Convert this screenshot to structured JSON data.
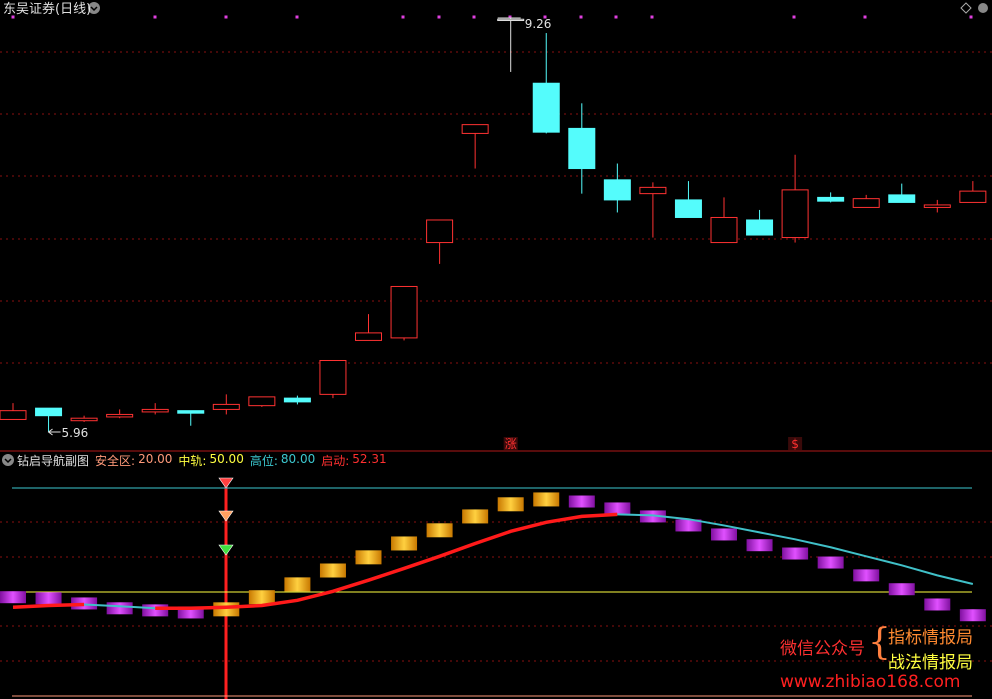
{
  "header": {
    "title": "东吴证券(日线)"
  },
  "chart_data": [
    {
      "type": "candlestick",
      "open": [
        6.06,
        6.15,
        6.05,
        6.08,
        6.12,
        6.13,
        6.14,
        6.17,
        6.23,
        6.26,
        6.69,
        6.71,
        7.47,
        8.34,
        9.24,
        8.74,
        8.38,
        7.97,
        7.86,
        7.81,
        7.47,
        7.65,
        7.51,
        7.83,
        7.75,
        7.85,
        7.75,
        7.79
      ],
      "high": [
        6.19,
        6.15,
        6.09,
        6.14,
        6.19,
        6.13,
        6.26,
        6.24,
        6.25,
        6.53,
        6.9,
        7.12,
        7.65,
        8.41,
        9.26,
        9.14,
        8.58,
        8.1,
        7.95,
        7.96,
        7.83,
        7.73,
        8.17,
        7.87,
        7.85,
        7.94,
        7.81,
        7.96
      ],
      "low": [
        6.06,
        5.96,
        6.04,
        6.07,
        6.1,
        6.01,
        6.1,
        6.16,
        6.18,
        6.23,
        6.69,
        6.69,
        7.3,
        8.06,
        8.83,
        8.34,
        7.86,
        7.71,
        7.51,
        7.67,
        7.47,
        7.53,
        7.47,
        7.79,
        7.75,
        7.79,
        7.71,
        7.79
      ],
      "close": [
        6.13,
        6.09,
        6.07,
        6.1,
        6.14,
        6.11,
        6.18,
        6.24,
        6.2,
        6.53,
        6.75,
        7.12,
        7.65,
        8.41,
        9.25,
        8.35,
        8.06,
        7.81,
        7.91,
        7.67,
        7.67,
        7.53,
        7.89,
        7.8,
        7.82,
        7.79,
        7.77,
        7.88
      ],
      "signals": [
        null,
        null,
        null,
        null,
        null,
        null,
        null,
        null,
        null,
        null,
        null,
        null,
        null,
        null,
        "涨",
        null,
        null,
        null,
        null,
        null,
        null,
        null,
        "$",
        null,
        null,
        null,
        null,
        null
      ],
      "up_color": "#ff3232",
      "down_color": "#54fcfc"
    },
    {
      "type": "line",
      "title": "钻启导航副图",
      "levels": [
        {
          "name": "安全区:",
          "value": 20,
          "label": "20.00",
          "color": "#ff9a7a"
        },
        {
          "name": "中轨:",
          "value": 50,
          "label": "50.00",
          "color": "#ffff40"
        },
        {
          "name": "高位:",
          "value": 80,
          "label": "80.00",
          "color": "#3cc8d0"
        }
      ],
      "series": [
        {
          "name": "启动:",
          "color": "#ff3030",
          "rise_color": "#ff1a1a",
          "fall_color": "#40c0c8",
          "values": [
            45.6,
            46.1,
            46.4,
            45.9,
            45.3,
            45.3,
            45.6,
            46.1,
            47.6,
            50.2,
            53.4,
            56.8,
            60.3,
            64.0,
            67.5,
            70.1,
            71.8,
            72.4,
            72.1,
            71.0,
            69.2,
            67.2,
            65.2,
            62.9,
            60.3,
            57.7,
            54.8,
            52.31
          ]
        }
      ],
      "blocks": {
        "rise_color": "#ffb000",
        "fall_color": "#c020e0",
        "values": [
          48.5,
          48.2,
          46.7,
          45.3,
          44.7,
          44.1,
          45.0,
          48.5,
          52.2,
          56.2,
          60.0,
          64.0,
          67.8,
          71.8,
          75.3,
          76.7,
          76.1,
          74.1,
          71.8,
          69.2,
          66.6,
          63.5,
          61.1,
          58.5,
          54.8,
          50.8,
          46.4,
          43.3
        ]
      }
    }
  ],
  "watermark": {
    "account": "微信公众号",
    "brace": "{",
    "name1": "指标情报局",
    "name2": "战法情报局",
    "url": "www.zhibiao168.com"
  }
}
